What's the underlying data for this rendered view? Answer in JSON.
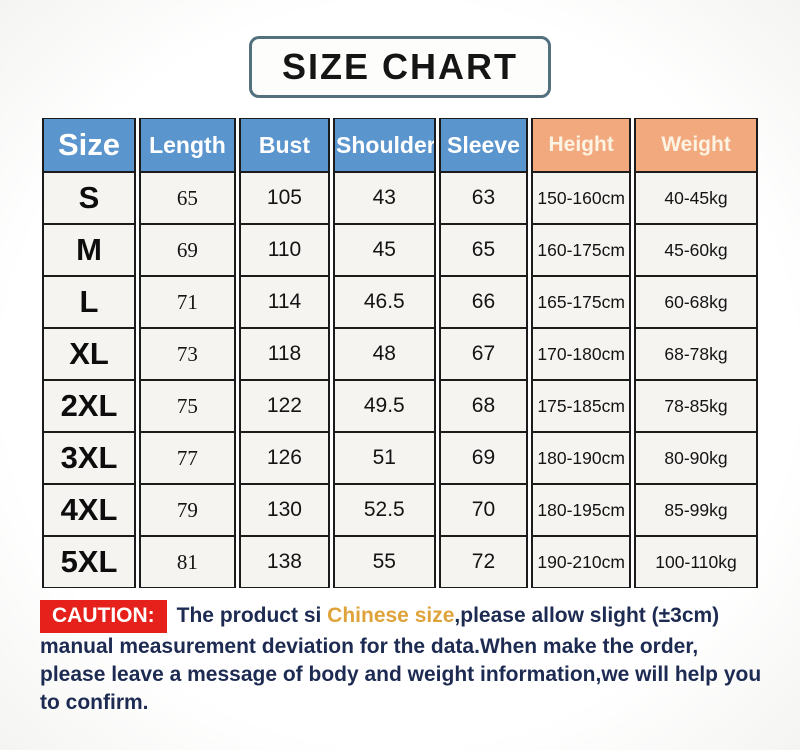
{
  "title": "SIZE CHART",
  "chart_data": {
    "type": "table",
    "title": "SIZE CHART",
    "columns": [
      "Size",
      "Length",
      "Bust",
      "Shoulder",
      "Sleeve",
      "Height",
      "Weight"
    ],
    "rows": [
      [
        "S",
        "65",
        "105",
        "43",
        "63",
        "150-160cm",
        "40-45kg"
      ],
      [
        "M",
        "69",
        "110",
        "45",
        "65",
        "160-175cm",
        "45-60kg"
      ],
      [
        "L",
        "71",
        "114",
        "46.5",
        "66",
        "165-175cm",
        "60-68kg"
      ],
      [
        "XL",
        "73",
        "118",
        "48",
        "67",
        "170-180cm",
        "68-78kg"
      ],
      [
        "2XL",
        "75",
        "122",
        "49.5",
        "68",
        "175-185cm",
        "78-85kg"
      ],
      [
        "3XL",
        "77",
        "126",
        "51",
        "69",
        "180-190cm",
        "80-90kg"
      ],
      [
        "4XL",
        "79",
        "130",
        "52.5",
        "70",
        "180-195cm",
        "85-99kg"
      ],
      [
        "5XL",
        "81",
        "138",
        "55",
        "72",
        "190-210cm",
        "100-110kg"
      ]
    ],
    "layout_hints": {
      "measure_header_color": "#5b95cd",
      "body_header_color": "#f2a97e",
      "cell_background": "#f5f4f1",
      "grid": "on"
    }
  },
  "caution": {
    "label": "CAUTION:",
    "text_before": "The product si ",
    "highlight": "Chinese size",
    "text_after": ",please allow slight (±3cm) manual measurement deviation for the data.When make the order, please leave a message of body and weight information,we will help you to confirm."
  },
  "colors": {
    "header_blue": "#5b95cd",
    "header_orange": "#f2a97e",
    "caution_red": "#e6201a",
    "caution_text_navy": "#1d2b52",
    "highlight_gold": "#dfa33b"
  }
}
